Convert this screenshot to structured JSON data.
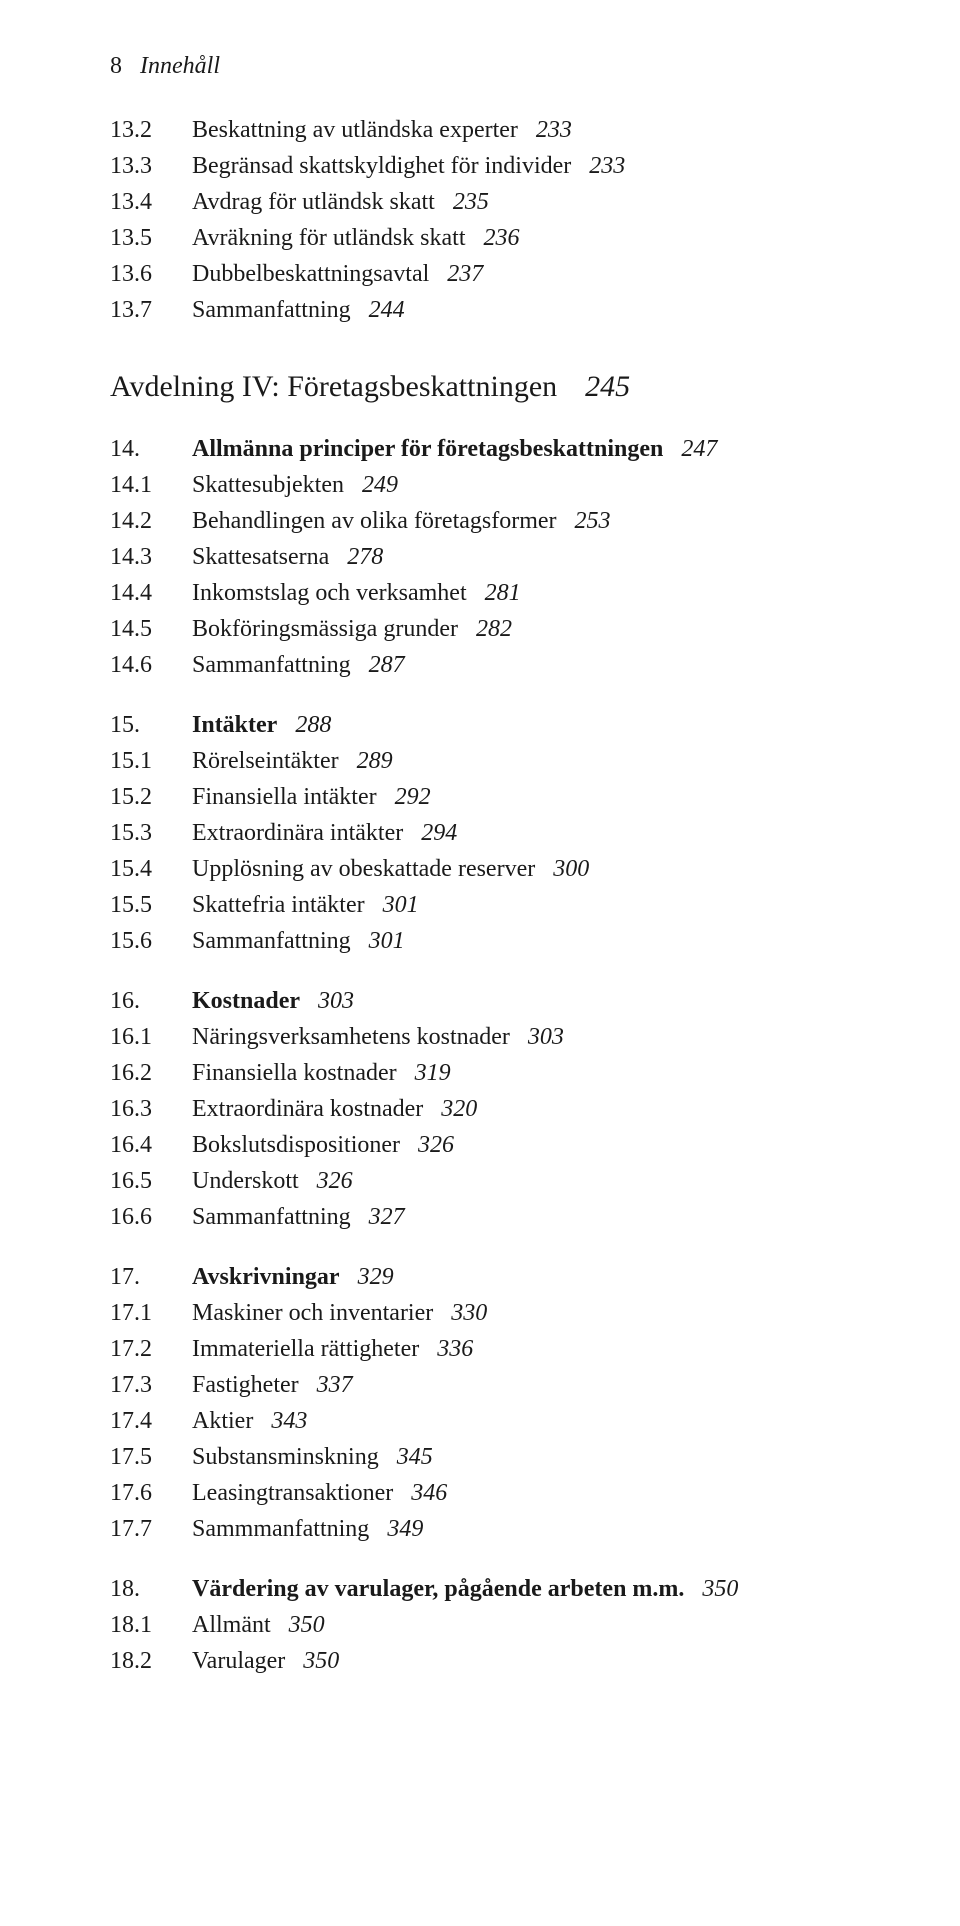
{
  "header": {
    "page_number": "8",
    "running_title": "Innehåll"
  },
  "title": {
    "text": "Avdelning IV: Företagsbeskattningen",
    "page": "245"
  },
  "sections": [
    {
      "gap_before": false,
      "entries": [
        {
          "num": "13.2",
          "text": "Beskattning av utländska experter",
          "page": "233",
          "bold": false
        },
        {
          "num": "13.3",
          "text": "Begränsad skattskyldighet för individer",
          "page": "233",
          "bold": false
        },
        {
          "num": "13.4",
          "text": "Avdrag för utländsk skatt",
          "page": "235",
          "bold": false
        },
        {
          "num": "13.5",
          "text": "Avräkning för utländsk skatt",
          "page": "236",
          "bold": false
        },
        {
          "num": "13.6",
          "text": "Dubbelbeskattningsavtal",
          "page": "237",
          "bold": false
        },
        {
          "num": "13.7",
          "text": "Sammanfattning",
          "page": "244",
          "bold": false
        }
      ]
    },
    {
      "gap_before": false,
      "title_block": true
    },
    {
      "gap_before": false,
      "entries": [
        {
          "num": "14.",
          "text": "Allmänna principer för företagsbeskattningen",
          "page": "247",
          "bold": true
        },
        {
          "num": "14.1",
          "text": "Skattesubjekten",
          "page": "249",
          "bold": false
        },
        {
          "num": "14.2",
          "text": "Behandlingen av olika företagsformer",
          "page": "253",
          "bold": false
        },
        {
          "num": "14.3",
          "text": "Skattesatserna",
          "page": "278",
          "bold": false
        },
        {
          "num": "14.4",
          "text": "Inkomstslag och verksamhet",
          "page": "281",
          "bold": false
        },
        {
          "num": "14.5",
          "text": "Bokföringsmässiga grunder",
          "page": "282",
          "bold": false
        },
        {
          "num": "14.6",
          "text": "Sammanfattning",
          "page": "287",
          "bold": false
        }
      ]
    },
    {
      "gap_before": true,
      "entries": [
        {
          "num": "15.",
          "text": "Intäkter",
          "page": "288",
          "bold": true
        },
        {
          "num": "15.1",
          "text": "Rörelseintäkter",
          "page": "289",
          "bold": false
        },
        {
          "num": "15.2",
          "text": "Finansiella intäkter",
          "page": "292",
          "bold": false
        },
        {
          "num": "15.3",
          "text": "Extraordinära intäkter",
          "page": "294",
          "bold": false
        },
        {
          "num": "15.4",
          "text": "Upplösning av obeskattade reserver",
          "page": "300",
          "bold": false
        },
        {
          "num": "15.5",
          "text": "Skattefria intäkter",
          "page": "301",
          "bold": false
        },
        {
          "num": "15.6",
          "text": "Sammanfattning",
          "page": "301",
          "bold": false
        }
      ]
    },
    {
      "gap_before": true,
      "entries": [
        {
          "num": "16.",
          "text": "Kostnader",
          "page": "303",
          "bold": true
        },
        {
          "num": "16.1",
          "text": "Näringsverksamhetens kostnader",
          "page": "303",
          "bold": false
        },
        {
          "num": "16.2",
          "text": "Finansiella kostnader",
          "page": "319",
          "bold": false
        },
        {
          "num": "16.3",
          "text": "Extraordinära kostnader",
          "page": "320",
          "bold": false
        },
        {
          "num": "16.4",
          "text": "Bokslutsdispositioner",
          "page": "326",
          "bold": false
        },
        {
          "num": "16.5",
          "text": "Underskott",
          "page": "326",
          "bold": false
        },
        {
          "num": "16.6",
          "text": "Sammanfattning",
          "page": "327",
          "bold": false
        }
      ]
    },
    {
      "gap_before": true,
      "entries": [
        {
          "num": "17.",
          "text": "Avskrivningar",
          "page": "329",
          "bold": true
        },
        {
          "num": "17.1",
          "text": "Maskiner och inventarier",
          "page": "330",
          "bold": false
        },
        {
          "num": "17.2",
          "text": "Immateriella rättigheter",
          "page": "336",
          "bold": false
        },
        {
          "num": "17.3",
          "text": "Fastigheter",
          "page": "337",
          "bold": false
        },
        {
          "num": "17.4",
          "text": "Aktier",
          "page": "343",
          "bold": false
        },
        {
          "num": "17.5",
          "text": "Substansminskning",
          "page": "345",
          "bold": false
        },
        {
          "num": "17.6",
          "text": "Leasingtransaktioner",
          "page": "346",
          "bold": false
        },
        {
          "num": "17.7",
          "text": "Sammmanfattning",
          "page": "349",
          "bold": false
        }
      ]
    },
    {
      "gap_before": true,
      "entries": [
        {
          "num": "18.",
          "text": "Värdering av varulager, pågående arbeten m.m.",
          "page": "350",
          "bold": true
        },
        {
          "num": "18.1",
          "text": "Allmänt",
          "page": "350",
          "bold": false
        },
        {
          "num": "18.2",
          "text": "Varulager",
          "page": "350",
          "bold": false
        }
      ]
    }
  ]
}
